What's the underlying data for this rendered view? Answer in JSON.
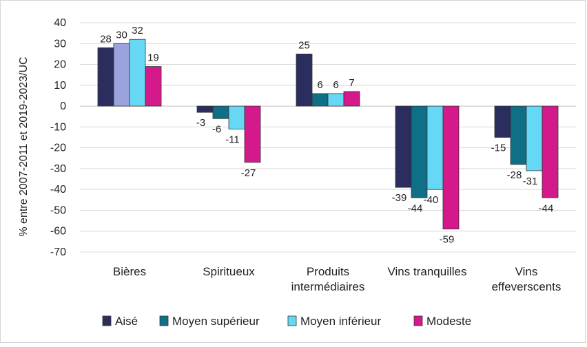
{
  "chart_data": {
    "type": "bar",
    "ylabel": "% entre 2007-2011 et 2019-2023/UC",
    "ylim": [
      -70,
      40
    ],
    "yticks": [
      40,
      30,
      20,
      10,
      0,
      -10,
      -20,
      -30,
      -40,
      -50,
      -60,
      -70
    ],
    "grid": true,
    "legend_position": "bottom",
    "categories": [
      [
        "Bières"
      ],
      [
        "Spiritueux"
      ],
      [
        "Produits",
        "intermédiaires"
      ],
      [
        "Vins tranquilles"
      ],
      [
        "Vins",
        "effeverscents"
      ]
    ],
    "series": [
      {
        "name": "Aisé",
        "color": "#2b2d5e",
        "values": [
          28,
          -3,
          25,
          -39,
          -15
        ]
      },
      {
        "name": "Moyen supérieur",
        "color": "#0f6f86",
        "values": [
          30,
          -6,
          6,
          -44,
          -28
        ]
      },
      {
        "name": "Moyen inférieur",
        "color": "#66d8f5",
        "values": [
          32,
          -11,
          6,
          -40,
          -31
        ]
      },
      {
        "name": "Modeste",
        "color": "#d4198a",
        "values": [
          19,
          -27,
          7,
          -59,
          -44
        ]
      }
    ],
    "series_bar_colors": [
      "#2b2d5e",
      "#9aa3dc",
      "#66d8f5",
      "#d4198a"
    ],
    "series_bar_colors_by_category": [
      [
        "#2b2d5e",
        "#9aa3dc",
        "#66d8f5",
        "#d4198a"
      ],
      [
        "#2b2d5e",
        "#0f6f86",
        "#66d8f5",
        "#d4198a"
      ],
      [
        "#2b2d5e",
        "#0f6f86",
        "#66d8f5",
        "#d4198a"
      ],
      [
        "#2b2d5e",
        "#0f6f86",
        "#66d8f5",
        "#d4198a"
      ],
      [
        "#2b2d5e",
        "#0f6f86",
        "#66d8f5",
        "#d4198a"
      ]
    ]
  }
}
